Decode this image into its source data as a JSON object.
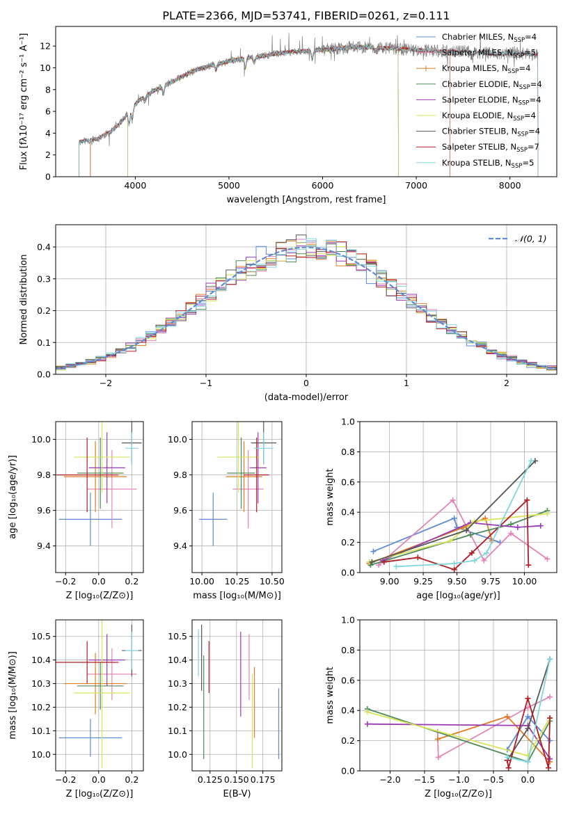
{
  "figure_title": "PLATE=2366, MJD=53741, FIBERID=0261, z=0.111",
  "colors": {
    "Chabrier MILES": "#5b8bd6",
    "Salpeter MILES": "#e383b7",
    "Kroupa MILES": "#e07b22",
    "Chabrier ELODIE": "#4c8a57",
    "Salpeter ELODIE": "#9a39b5",
    "Kroupa ELODIE": "#d7e55a",
    "Chabrier STELIB": "#555555",
    "Salpeter STELIB": "#b01c22",
    "Kroupa STELIB": "#7fd6e0",
    "gauss": "#5b8bd6",
    "data": "#808080"
  },
  "chart_data": [
    {
      "type": "line",
      "id": "spectrum",
      "xlabel": "wavelength [Angstrom, rest frame]",
      "ylabel": "Flux [fλ10⁻¹⁷ erg cm⁻² s⁻¹ A⁻¹]",
      "xlim": [
        3150,
        8500
      ],
      "ylim": [
        0,
        13.8
      ],
      "xticks": [
        4000,
        5000,
        6000,
        7000,
        8000
      ],
      "yticks": [
        0,
        2,
        4,
        6,
        8,
        10,
        12
      ],
      "grid": false,
      "legend_position": "upper right",
      "legend": [
        "Chabrier MILES, N_SSP=4",
        "Salpeter MILES, N_SSP=5",
        "Kroupa MILES, N_SSP=4",
        "Chabrier ELODIE, N_SSP=4",
        "Salpeter ELODIE, N_SSP=4",
        "Kroupa ELODIE, N_SSP=4",
        "Chabrier STELIB, N_SSP=4",
        "Salpeter STELIB, N_SSP=7",
        "Kroupa STELIB, N_SSP=5"
      ],
      "legend_sub": "SSP",
      "continuum": {
        "x": [
          3400,
          3600,
          3750,
          3850,
          3950,
          4050,
          4200,
          4350,
          4500,
          4650,
          4800,
          4950,
          5100,
          5300,
          5500,
          5700,
          5900,
          6100,
          6300,
          6500,
          6700,
          6900,
          7100,
          7300,
          7500,
          7700,
          7900,
          8100,
          8300
        ],
        "y": [
          3.2,
          3.5,
          4.2,
          5.0,
          6.2,
          7.1,
          7.9,
          8.5,
          9.2,
          9.8,
          10.2,
          10.5,
          10.8,
          11.0,
          11.3,
          11.5,
          11.6,
          11.7,
          11.9,
          11.9,
          11.8,
          11.7,
          11.6,
          11.5,
          11.5,
          11.4,
          11.3,
          11.3,
          11.2
        ]
      },
      "series": [
        {
          "name": "data",
          "xmin": 3400,
          "xmax": 8300
        },
        {
          "name": "Chabrier MILES",
          "xmin": 3520,
          "xmax": 7360
        },
        {
          "name": "Salpeter MILES",
          "xmin": 3520,
          "xmax": 7360
        },
        {
          "name": "Kroupa MILES",
          "xmin": 3520,
          "xmax": 7360
        },
        {
          "name": "Chabrier ELODIE",
          "xmin": 3920,
          "xmax": 6810
        },
        {
          "name": "Salpeter ELODIE",
          "xmin": 3920,
          "xmax": 6810
        },
        {
          "name": "Kroupa ELODIE",
          "xmin": 3920,
          "xmax": 6810
        },
        {
          "name": "Chabrier STELIB",
          "xmin": 3400,
          "xmax": 8300
        },
        {
          "name": "Salpeter STELIB",
          "xmin": 3400,
          "xmax": 8300
        },
        {
          "name": "Kroupa STELIB",
          "xmin": 3400,
          "xmax": 8300
        }
      ]
    },
    {
      "type": "step-histogram",
      "id": "residuals",
      "xlabel": "(data-model)/error",
      "ylabel": "Normed distribution",
      "xlim": [
        -2.5,
        2.5
      ],
      "ylim": [
        0,
        0.47
      ],
      "xticks": [
        -2,
        -1,
        0,
        1,
        2
      ],
      "yticks": [
        0.0,
        0.1,
        0.2,
        0.3,
        0.4
      ],
      "grid": true,
      "legend_position": "upper right",
      "legend": [
        "𝒩(0, 1)"
      ],
      "bin_width": 0.1,
      "bin_start": -2.5,
      "reference_curve": "gaussian, mean 0, sigma 1"
    },
    {
      "type": "errorbar",
      "id": "age-vs-Z",
      "xlabel": "Z [log₁₀(Z/Z⊙)]",
      "ylabel": "age  [log₁₀(age/yr)]",
      "xlim": [
        -0.26,
        0.27
      ],
      "ylim": [
        9.25,
        10.1
      ],
      "xticks": [
        -0.2,
        0.0,
        0.2
      ],
      "yticks": [
        9.4,
        9.6,
        9.8,
        10.0
      ],
      "grid": true,
      "points": [
        {
          "series": "Chabrier MILES",
          "x": -0.05,
          "y": 9.55,
          "xerr": 0.19,
          "yerr": 0.15
        },
        {
          "series": "Salpeter MILES",
          "x": 0.08,
          "y": 9.72,
          "xerr": 0.15,
          "yerr": 0.22
        },
        {
          "series": "Kroupa MILES",
          "x": -0.02,
          "y": 9.79,
          "xerr": 0.19,
          "yerr": 0.2
        },
        {
          "series": "Chabrier ELODIE",
          "x": 0.01,
          "y": 9.81,
          "xerr": 0.14,
          "yerr": 0.2
        },
        {
          "series": "Salpeter ELODIE",
          "x": 0.05,
          "y": 9.84,
          "xerr": 0.11,
          "yerr": 0.2
        },
        {
          "series": "Kroupa ELODIE",
          "x": 0.02,
          "y": 9.9,
          "xerr": 0.17,
          "yerr": 0.2
        },
        {
          "series": "Chabrier STELIB",
          "x": 0.2,
          "y": 9.98,
          "xerr": 0.06,
          "yerr": 0.12
        },
        {
          "series": "Salpeter STELIB",
          "x": -0.07,
          "y": 9.8,
          "xerr": 0.19,
          "yerr": 0.21
        },
        {
          "series": "Kroupa STELIB",
          "x": 0.2,
          "y": 9.95,
          "xerr": 0.04,
          "yerr": 0.09
        }
      ]
    },
    {
      "type": "errorbar",
      "id": "age-vs-mass",
      "xlabel": "mass [log₁₀(M/M⊙)]",
      "ylabel": "",
      "xlim": [
        9.93,
        10.57
      ],
      "ylim": [
        9.25,
        10.1
      ],
      "xticks": [
        10.0,
        10.25,
        10.5
      ],
      "yticks": [
        9.4,
        9.6,
        9.8,
        10.0
      ],
      "grid": true,
      "points": [
        {
          "series": "Chabrier MILES",
          "x": 10.08,
          "y": 9.55,
          "xerr": 0.1,
          "yerr": 0.15
        },
        {
          "series": "Salpeter MILES",
          "x": 10.33,
          "y": 9.72,
          "xerr": 0.11,
          "yerr": 0.22
        },
        {
          "series": "Kroupa MILES",
          "x": 10.3,
          "y": 9.79,
          "xerr": 0.13,
          "yerr": 0.2
        },
        {
          "series": "Chabrier ELODIE",
          "x": 10.28,
          "y": 9.81,
          "xerr": 0.1,
          "yerr": 0.2
        },
        {
          "series": "Salpeter ELODIE",
          "x": 10.4,
          "y": 9.84,
          "xerr": 0.06,
          "yerr": 0.2
        },
        {
          "series": "Kroupa ELODIE",
          "x": 10.26,
          "y": 9.9,
          "xerr": 0.15,
          "yerr": 0.2
        },
        {
          "series": "Chabrier STELIB",
          "x": 10.44,
          "y": 9.98,
          "xerr": 0.09,
          "yerr": 0.12
        },
        {
          "series": "Salpeter STELIB",
          "x": 10.39,
          "y": 9.8,
          "xerr": 0.09,
          "yerr": 0.21
        },
        {
          "series": "Kroupa STELIB",
          "x": 10.44,
          "y": 9.95,
          "xerr": 0.07,
          "yerr": 0.09
        }
      ]
    },
    {
      "type": "line",
      "id": "weight-vs-age",
      "xlabel": "age  [log₁₀(age/yr)]",
      "ylabel": "mass weight",
      "xlim": [
        8.78,
        10.24
      ],
      "ylim": [
        0,
        1.0
      ],
      "xticks": [
        9.0,
        9.25,
        9.5,
        9.75,
        10.0
      ],
      "yticks": [
        0.0,
        0.2,
        0.4,
        0.6,
        0.8,
        1.0
      ],
      "grid": true,
      "series": [
        {
          "name": "Chabrier MILES",
          "x": [
            8.88,
            9.48,
            9.5,
            9.82
          ],
          "y": [
            0.14,
            0.36,
            0.3,
            0.2
          ]
        },
        {
          "name": "Salpeter MILES",
          "x": [
            8.92,
            9.47,
            9.7,
            9.9,
            10.17
          ],
          "y": [
            0.05,
            0.48,
            0.08,
            0.26,
            0.09
          ]
        },
        {
          "name": "Kroupa MILES",
          "x": [
            8.85,
            9.55,
            9.71,
            9.76
          ],
          "y": [
            0.06,
            0.3,
            0.36,
            0.21
          ]
        },
        {
          "name": "Chabrier ELODIE",
          "x": [
            8.86,
            9.6,
            9.9,
            10.17
          ],
          "y": [
            0.05,
            0.25,
            0.32,
            0.41
          ]
        },
        {
          "name": "Salpeter ELODIE",
          "x": [
            8.95,
            9.6,
            9.95,
            10.12
          ],
          "y": [
            0.08,
            0.33,
            0.3,
            0.31
          ]
        },
        {
          "name": "Kroupa ELODIE",
          "x": [
            8.85,
            9.45,
            9.63,
            10.17
          ],
          "y": [
            0.07,
            0.21,
            0.34,
            0.39
          ]
        },
        {
          "name": "Chabrier STELIB",
          "x": [
            8.87,
            9.57,
            10.08
          ],
          "y": [
            0.07,
            0.28,
            0.74
          ]
        },
        {
          "name": "Salpeter STELIB",
          "x": [
            8.96,
            9.21,
            9.48,
            9.61,
            10.02,
            10.03
          ],
          "y": [
            0.07,
            0.1,
            0.02,
            0.13,
            0.48,
            0.05
          ]
        },
        {
          "name": "Kroupa STELIB",
          "x": [
            9.05,
            9.48,
            9.63,
            9.72,
            10.05
          ],
          "y": [
            0.04,
            0.06,
            0.08,
            0.13,
            0.74
          ]
        }
      ]
    },
    {
      "type": "errorbar",
      "id": "mass-vs-Z",
      "xlabel": "Z [log₁₀(Z/Z⊙)]",
      "ylabel": "mass [log₁₀(M/M⊙)]",
      "xlim": [
        -0.26,
        0.27
      ],
      "ylim": [
        9.93,
        10.57
      ],
      "xticks": [
        -0.2,
        0.0,
        0.2
      ],
      "yticks": [
        10.0,
        10.1,
        10.2,
        10.3,
        10.4,
        10.5
      ],
      "grid": true,
      "points": [
        {
          "series": "Chabrier MILES",
          "x": -0.05,
          "y": 10.07,
          "xerr": 0.19,
          "yerr": 0.08
        },
        {
          "series": "Salpeter MILES",
          "x": 0.08,
          "y": 10.34,
          "xerr": 0.15,
          "yerr": 0.11
        },
        {
          "series": "Kroupa MILES",
          "x": -0.02,
          "y": 10.3,
          "xerr": 0.19,
          "yerr": 0.13
        },
        {
          "series": "Chabrier ELODIE",
          "x": 0.01,
          "y": 10.29,
          "xerr": 0.14,
          "yerr": 0.1
        },
        {
          "series": "Salpeter ELODIE",
          "x": 0.05,
          "y": 10.4,
          "xerr": 0.11,
          "yerr": 0.11
        },
        {
          "series": "Kroupa ELODIE",
          "x": 0.02,
          "y": 10.26,
          "xerr": 0.17,
          "yerr": 0.32
        },
        {
          "series": "Chabrier STELIB",
          "x": 0.2,
          "y": 10.44,
          "xerr": 0.06,
          "yerr": 0.11
        },
        {
          "series": "Salpeter STELIB",
          "x": -0.07,
          "y": 10.39,
          "xerr": 0.19,
          "yerr": 0.09
        },
        {
          "series": "Kroupa STELIB",
          "x": 0.2,
          "y": 10.44,
          "xerr": 0.04,
          "yerr": 0.08
        }
      ]
    },
    {
      "type": "errorbar",
      "id": "mass-vs-ebv",
      "xlabel": "E(B-V)",
      "ylabel": "",
      "xlim": [
        0.108,
        0.193
      ],
      "ylim": [
        9.93,
        10.57
      ],
      "xticks": [
        0.125,
        0.15,
        0.175
      ],
      "yticks": [
        10.0,
        10.1,
        10.2,
        10.3,
        10.4,
        10.5
      ],
      "grid": true,
      "points": [
        {
          "series": "Chabrier MILES",
          "x": 0.19,
          "y": 10.13,
          "yerr": 0.15
        },
        {
          "series": "Salpeter MILES",
          "x": 0.162,
          "y": 10.37,
          "yerr": 0.14
        },
        {
          "series": "Kroupa MILES",
          "x": 0.167,
          "y": 10.22,
          "yerr": 0.15
        },
        {
          "series": "Chabrier ELODIE",
          "x": 0.119,
          "y": 10.2,
          "yerr": 0.22
        },
        {
          "series": "Salpeter ELODIE",
          "x": 0.154,
          "y": 10.34,
          "yerr": 0.18
        },
        {
          "series": "Kroupa ELODIE",
          "x": 0.165,
          "y": 10.14,
          "yerr": 0.2
        },
        {
          "series": "Chabrier STELIB",
          "x": 0.117,
          "y": 10.41,
          "yerr": 0.14
        },
        {
          "series": "Salpeter STELIB",
          "x": 0.124,
          "y": 10.37,
          "yerr": 0.11
        },
        {
          "series": "Kroupa STELIB",
          "x": 0.114,
          "y": 10.43,
          "yerr": 0.1
        }
      ]
    },
    {
      "type": "line",
      "id": "weight-vs-Z",
      "xlabel": "Z [log₁₀(Z/Z⊙)]",
      "ylabel": "mass weight",
      "xlim": [
        -2.44,
        0.42
      ],
      "ylim": [
        0,
        1.0
      ],
      "xticks": [
        -2.0,
        -1.5,
        -1.0,
        -0.5,
        0.0
      ],
      "yticks": [
        0.0,
        0.2,
        0.4,
        0.6,
        0.8,
        1.0
      ],
      "grid": true,
      "series": [
        {
          "name": "Chabrier MILES",
          "x": [
            -0.3,
            0.0,
            0.32
          ],
          "y": [
            0.14,
            0.36,
            0.2
          ]
        },
        {
          "name": "Salpeter MILES",
          "x": [
            -1.31,
            -1.3,
            0.0,
            0.32
          ],
          "y": [
            0.26,
            0.09,
            0.42,
            0.49
          ]
        },
        {
          "name": "Kroupa MILES",
          "x": [
            -1.31,
            -0.3,
            0.32
          ],
          "y": [
            0.21,
            0.36,
            0.06
          ]
        },
        {
          "name": "Chabrier ELODIE",
          "x": [
            -2.33,
            0.0,
            0.32
          ],
          "y": [
            0.41,
            0.06,
            0.33
          ]
        },
        {
          "name": "Salpeter ELODIE",
          "x": [
            -2.33,
            0.0,
            0.32
          ],
          "y": [
            0.31,
            0.3,
            0.08
          ]
        },
        {
          "name": "Kroupa ELODIE",
          "x": [
            -2.33,
            0.0,
            0.32
          ],
          "y": [
            0.39,
            0.1,
            0.35
          ]
        },
        {
          "name": "Chabrier STELIB",
          "x": [
            -0.3,
            0.0,
            0.32
          ],
          "y": [
            0.07,
            0.28,
            0.74
          ]
        },
        {
          "name": "Salpeter STELIB",
          "x": [
            -0.3,
            -0.28,
            0.0,
            0.3,
            0.32
          ],
          "y": [
            0.07,
            0.02,
            0.48,
            0.02,
            0.35
          ]
        },
        {
          "name": "Kroupa STELIB",
          "x": [
            -0.3,
            0.0,
            0.32
          ],
          "y": [
            0.09,
            0.06,
            0.74
          ]
        }
      ]
    }
  ]
}
